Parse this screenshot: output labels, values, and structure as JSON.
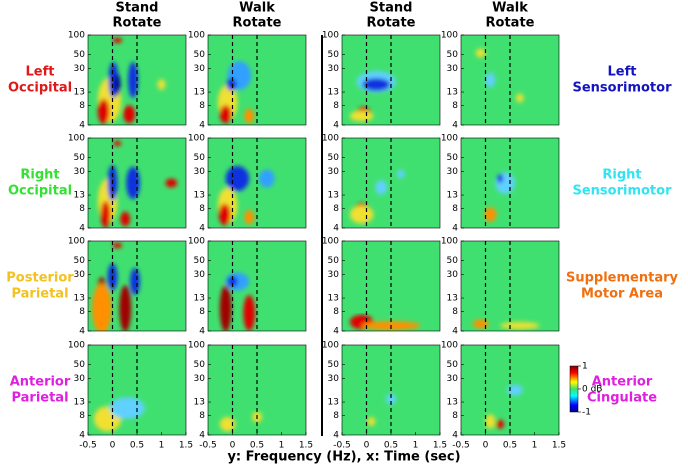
{
  "figure": {
    "columns": [
      {
        "title": [
          "Stand",
          "Rotate"
        ]
      },
      {
        "title": [
          "Walk",
          "Rotate"
        ]
      },
      {
        "title": [
          "Stand",
          "Rotate"
        ]
      },
      {
        "title": [
          "Walk",
          "Rotate"
        ]
      }
    ],
    "left_rows": [
      {
        "label": [
          "Left",
          "Occipital"
        ],
        "color": "#e01818"
      },
      {
        "label": [
          "Right",
          "Occipital"
        ],
        "color": "#35e035"
      },
      {
        "label": [
          "Posterior",
          "Parietal"
        ],
        "color": "#f2c21e"
      },
      {
        "label": [
          "Anterior",
          "Parietal"
        ],
        "color": "#e020e0"
      }
    ],
    "right_rows": [
      {
        "label": [
          "Left",
          "Sensorimotor"
        ],
        "color": "#1414c0"
      },
      {
        "label": [
          "Right",
          "Sensorimotor"
        ],
        "color": "#30e4f4"
      },
      {
        "label": [
          "Supplementary",
          "Motor Area"
        ],
        "color": "#f07010"
      },
      {
        "label": [
          "Anterior",
          "Cingulate"
        ],
        "color": "#e020e0"
      }
    ],
    "axes": {
      "xlim": [
        -0.5,
        1.5
      ],
      "xticks": [
        -0.5,
        0,
        0.5,
        1,
        1.5
      ],
      "ylim": [
        4,
        100
      ],
      "yticks": [
        4,
        8,
        13,
        30,
        50,
        100
      ],
      "log_y": true,
      "event_times": [
        0,
        0.5
      ]
    },
    "colorbar": {
      "lim": [
        -1,
        1
      ],
      "ticks": [
        -1,
        {
          "value": 0,
          "label": "0 dB"
        },
        1
      ]
    },
    "xlabel": "y: Frequency (Hz), x: Time (sec)"
  }
}
